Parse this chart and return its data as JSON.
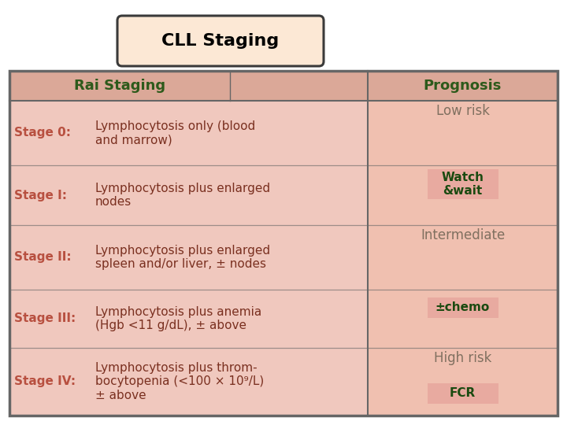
{
  "title": "CLL Staging",
  "title_bg": "#fce8d5",
  "title_border": "#3a3a3a",
  "title_fontsize": 16,
  "title_fontweight": "bold",
  "table_bg": "#f0c8be",
  "table_border": "#666666",
  "header_bg": "#dba898",
  "header_text_color": "#2d5a1b",
  "header_fontsize": 13,
  "header_fontweight": "bold",
  "stage_color": "#b85040",
  "desc_color": "#7a3020",
  "prog_label_color": "#807060",
  "prog_label_fontsize": 12,
  "treatment_color": "#1a4a10",
  "treatment_bg": "#e8b0a0",
  "treatment_fontsize": 11,
  "treatment_fontweight": "bold",
  "stage_fontsize": 11,
  "desc_fontsize": 11,
  "stages": [
    {
      "stage": "Stage 0:",
      "description": "Lymphocytosis only (blood\nand marrow)"
    },
    {
      "stage": "Stage I:",
      "description": "Lymphocytosis plus enlarged\nnodes"
    },
    {
      "stage": "Stage II:",
      "description": "Lymphocytosis plus enlarged\nspleen and/or liver, ± nodes"
    },
    {
      "stage": "Stage III:",
      "description": "Lymphocytosis plus anemia\n(Hgb <11 g/dL), ± above"
    },
    {
      "stage": "Stage IV:",
      "description": "Lymphocytosis plus throm-\nbocytopenia (<100 × 10⁹/L)\n± above"
    }
  ],
  "prog_groups": [
    {
      "rows": [
        0,
        1
      ],
      "prognosis": "Low risk",
      "treatment": "Watch\n&wait"
    },
    {
      "rows": [
        2,
        3
      ],
      "prognosis": "Intermediate",
      "treatment": "±chemo"
    },
    {
      "rows": [
        4
      ],
      "prognosis": "High risk",
      "treatment": "FCR"
    }
  ]
}
